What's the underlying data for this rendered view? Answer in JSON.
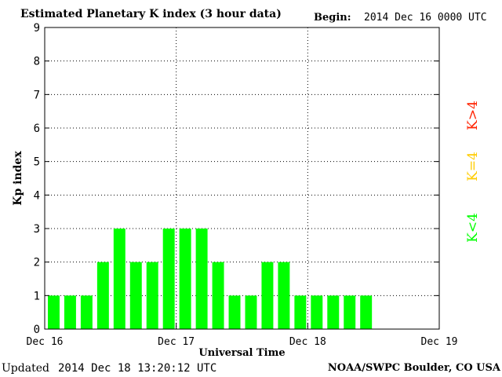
{
  "header": {
    "title": "Estimated Planetary K index (3 hour data)",
    "begin_label": "Begin:",
    "begin_value": "2014 Dec 16 0000 UTC"
  },
  "footer": {
    "updated_label": "Updated",
    "updated_value": "2014 Dec 18 13:20:12 UTC",
    "credit": "NOAA/SWPC Boulder, CO USA"
  },
  "colors": {
    "bar": "#00ff00",
    "k_below_4": "#00ff00",
    "k_equal_4": "#ffcc00",
    "k_above_4": "#ff2200"
  },
  "chart_data": {
    "type": "bar",
    "title": "Estimated Planetary K index (3 hour data)",
    "xlabel": "Universal Time",
    "ylabel": "Kp index",
    "ylim": [
      0,
      9
    ],
    "y_ticks": [
      "0",
      "1",
      "2",
      "3",
      "4",
      "5",
      "6",
      "7",
      "8",
      "9"
    ],
    "x_ticks": [
      "Dec 16",
      "Dec 17",
      "Dec 18",
      "Dec 19"
    ],
    "grid": true,
    "bar_interval_hours": 3,
    "values": [
      1,
      1,
      1,
      2,
      3,
      2,
      2,
      3,
      3,
      3,
      2,
      1,
      1,
      2,
      2,
      1,
      1,
      1,
      1,
      1
    ],
    "legend": [
      "K<4",
      "K=4",
      "K>4"
    ]
  }
}
